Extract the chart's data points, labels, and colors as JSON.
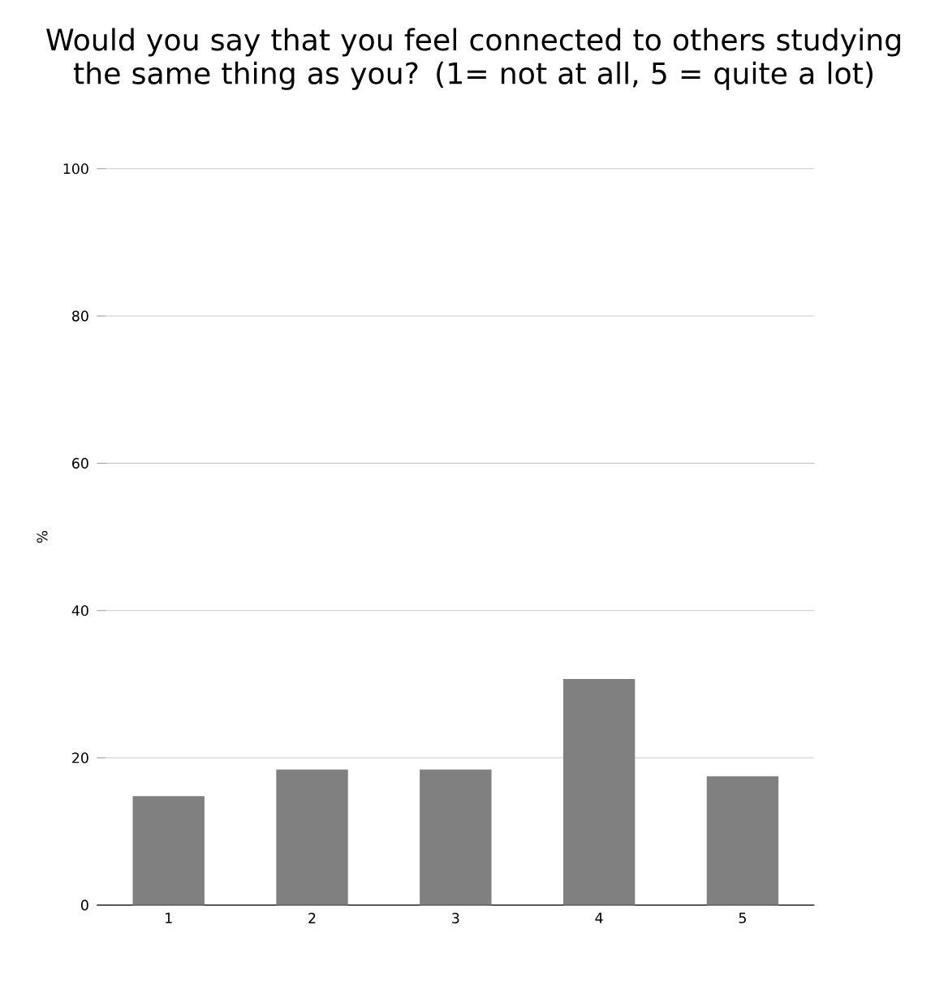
{
  "chart_data": {
    "type": "bar",
    "title": "Would you say that you feel connected to others studying the same thing as you? (1= not at all, 5 = quite a lot)",
    "ylabel": "%",
    "categories": [
      "1",
      "2",
      "3",
      "4",
      "5"
    ],
    "values": [
      14.8,
      18.4,
      18.4,
      30.7,
      17.5
    ],
    "color": "#808080",
    "ylim": [
      0,
      100
    ],
    "yticks": [
      0,
      20,
      40,
      60,
      80,
      100
    ],
    "grid": "y"
  }
}
